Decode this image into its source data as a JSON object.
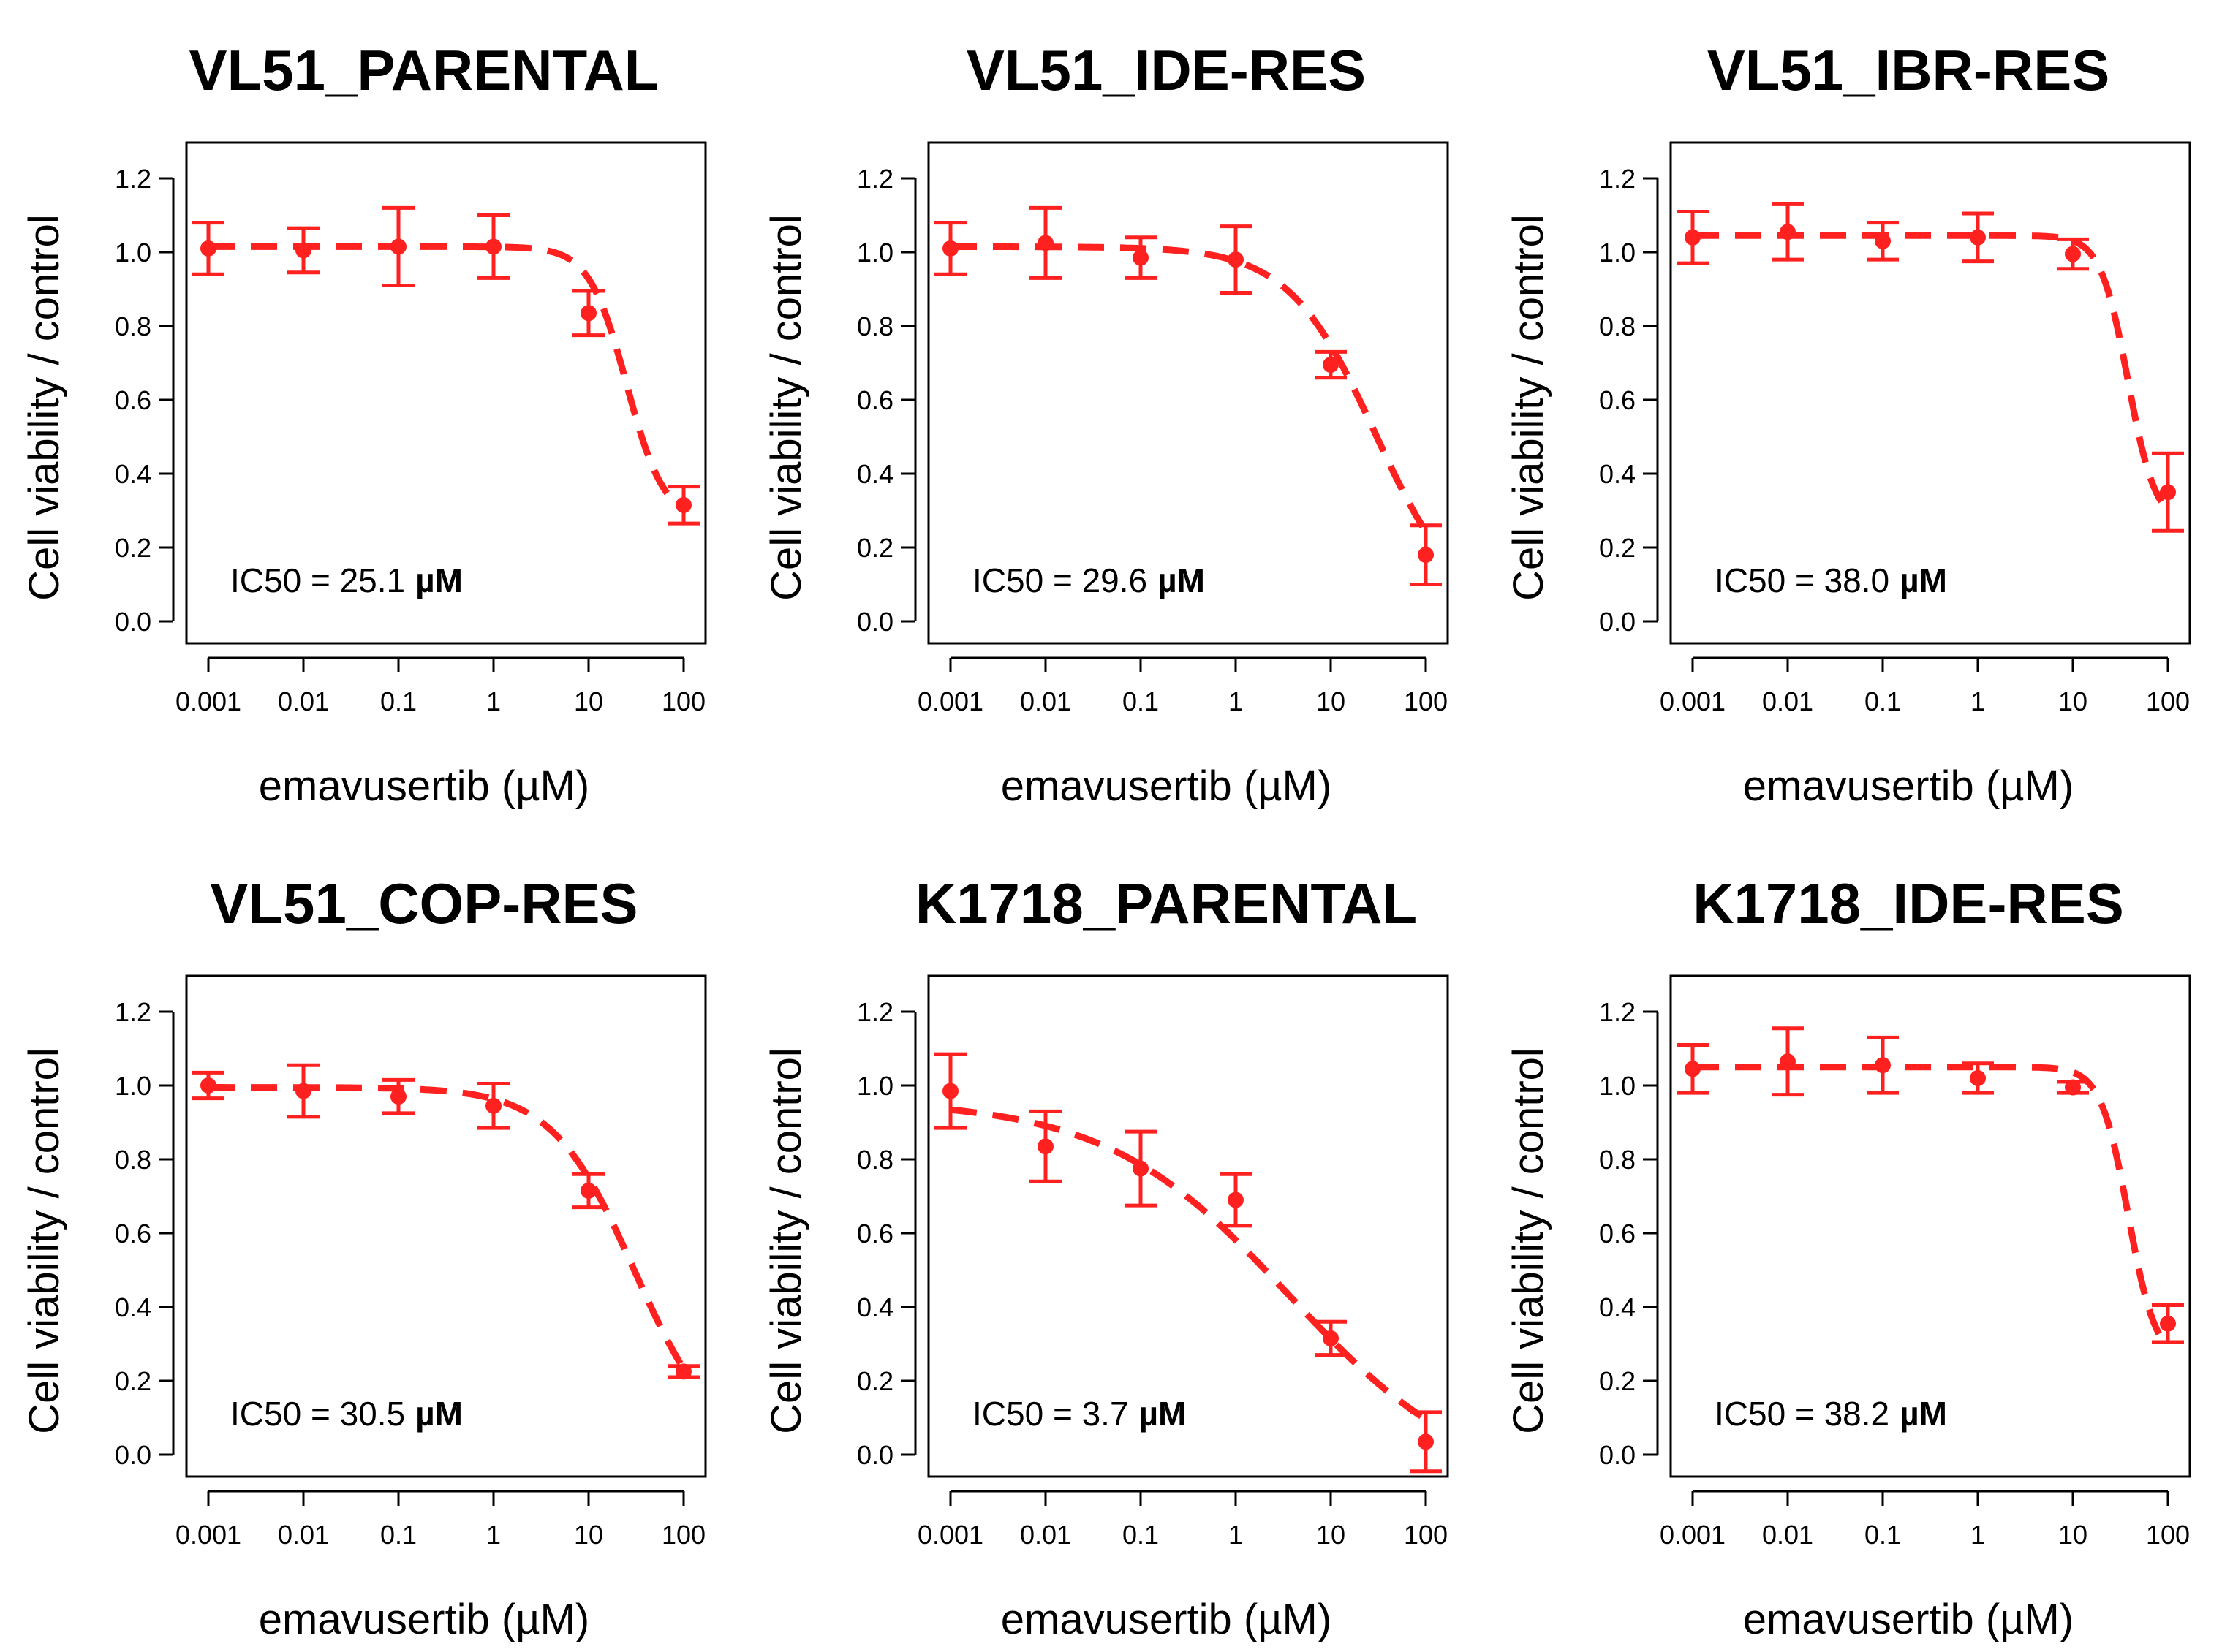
{
  "colors": {
    "series": "#ff2020",
    "axes": "#000000",
    "background": "#ffffff"
  },
  "chart_data": [
    {
      "type": "scatter",
      "title": "VL51_PARENTAL",
      "xlabel": "emavusertib (µM)",
      "ylabel": "Cell viability / control",
      "xscale": "log",
      "xticks": [
        "0.001",
        "0.01",
        "0.1",
        "1",
        "10",
        "100"
      ],
      "yticks": [
        "0.0",
        "0.2",
        "0.4",
        "0.6",
        "0.8",
        "1.0",
        "1.2"
      ],
      "ylim": [
        0,
        1.2
      ],
      "ic50_label": "IC50 = 25.1",
      "ic50_unit": "µM",
      "ic50": 25.1,
      "fit": {
        "top": 1.015,
        "bottom": 0.27,
        "hill": 2.2
      },
      "points": [
        {
          "x": 0.001,
          "y": 1.01,
          "err": 0.07
        },
        {
          "x": 0.01,
          "y": 1.005,
          "err": 0.06
        },
        {
          "x": 0.1,
          "y": 1.015,
          "err": 0.105
        },
        {
          "x": 1,
          "y": 1.015,
          "err": 0.085
        },
        {
          "x": 10,
          "y": 0.835,
          "err": 0.06
        },
        {
          "x": 100,
          "y": 0.315,
          "err": 0.05
        }
      ]
    },
    {
      "type": "scatter",
      "title": "VL51_IDE-RES",
      "xlabel": "emavusertib (µM)",
      "ylabel": "Cell viability / control",
      "xscale": "log",
      "xticks": [
        "0.001",
        "0.01",
        "0.1",
        "1",
        "10",
        "100"
      ],
      "yticks": [
        "0.0",
        "0.2",
        "0.4",
        "0.6",
        "0.8",
        "1.0",
        "1.2"
      ],
      "ylim": [
        0,
        1.2
      ],
      "ic50_label": "IC50 = 29.6",
      "ic50_unit": "µM",
      "ic50": 29.6,
      "fit": {
        "top": 1.015,
        "bottom": 0.0,
        "hill": 0.95
      },
      "points": [
        {
          "x": 0.001,
          "y": 1.01,
          "err": 0.07
        },
        {
          "x": 0.01,
          "y": 1.025,
          "err": 0.095
        },
        {
          "x": 0.1,
          "y": 0.985,
          "err": 0.055
        },
        {
          "x": 1,
          "y": 0.98,
          "err": 0.09
        },
        {
          "x": 10,
          "y": 0.695,
          "err": 0.035
        },
        {
          "x": 100,
          "y": 0.18,
          "err": 0.08
        }
      ]
    },
    {
      "type": "scatter",
      "title": "VL51_IBR-RES",
      "xlabel": "emavusertib (µM)",
      "ylabel": "Cell viability / control",
      "xscale": "log",
      "xticks": [
        "0.001",
        "0.01",
        "0.1",
        "1",
        "10",
        "100"
      ],
      "yticks": [
        "0.0",
        "0.2",
        "0.4",
        "0.6",
        "0.8",
        "1.0",
        "1.2"
      ],
      "ylim": [
        0,
        1.2
      ],
      "ic50_label": "IC50 = 38.0",
      "ic50_unit": "µM",
      "ic50": 38.0,
      "fit": {
        "top": 1.045,
        "bottom": 0.26,
        "hill": 3.0
      },
      "points": [
        {
          "x": 0.001,
          "y": 1.04,
          "err": 0.07
        },
        {
          "x": 0.01,
          "y": 1.055,
          "err": 0.075
        },
        {
          "x": 0.1,
          "y": 1.03,
          "err": 0.05
        },
        {
          "x": 1,
          "y": 1.04,
          "err": 0.065
        },
        {
          "x": 10,
          "y": 0.995,
          "err": 0.04
        },
        {
          "x": 100,
          "y": 0.35,
          "err": 0.105
        }
      ]
    },
    {
      "type": "scatter",
      "title": "VL51_COP-RES",
      "xlabel": "emavusertib (µM)",
      "ylabel": "Cell viability / control",
      "xscale": "log",
      "xticks": [
        "0.001",
        "0.01",
        "0.1",
        "1",
        "10",
        "100"
      ],
      "yticks": [
        "0.0",
        "0.2",
        "0.4",
        "0.6",
        "0.8",
        "1.0",
        "1.2"
      ],
      "ylim": [
        0,
        1.2
      ],
      "ic50_label": "IC50 = 30.5",
      "ic50_unit": "µM",
      "ic50": 30.5,
      "fit": {
        "top": 0.995,
        "bottom": 0.0,
        "hill": 1.0
      },
      "points": [
        {
          "x": 0.001,
          "y": 1.0,
          "err": 0.035
        },
        {
          "x": 0.01,
          "y": 0.985,
          "err": 0.07
        },
        {
          "x": 0.1,
          "y": 0.97,
          "err": 0.045
        },
        {
          "x": 1,
          "y": 0.945,
          "err": 0.06
        },
        {
          "x": 10,
          "y": 0.715,
          "err": 0.045
        },
        {
          "x": 100,
          "y": 0.225,
          "err": 0.015
        }
      ]
    },
    {
      "type": "scatter",
      "title": "K1718_PARENTAL",
      "xlabel": "emavusertib (µM)",
      "ylabel": "Cell viability / control",
      "xscale": "log",
      "xticks": [
        "0.001",
        "0.01",
        "0.1",
        "1",
        "10",
        "100"
      ],
      "yticks": [
        "0.0",
        "0.2",
        "0.4",
        "0.6",
        "0.8",
        "1.0",
        "1.2"
      ],
      "ylim": [
        0,
        1.2
      ],
      "ic50_label": "IC50 = 3.7",
      "ic50_unit": "µM",
      "ic50": 3.7,
      "fit": {
        "top": 0.96,
        "bottom": -0.1,
        "hill": 0.45
      },
      "points": [
        {
          "x": 0.001,
          "y": 0.985,
          "err": 0.1
        },
        {
          "x": 0.01,
          "y": 0.835,
          "err": 0.095
        },
        {
          "x": 0.1,
          "y": 0.775,
          "err": 0.1
        },
        {
          "x": 1,
          "y": 0.69,
          "err": 0.07
        },
        {
          "x": 10,
          "y": 0.315,
          "err": 0.045
        },
        {
          "x": 100,
          "y": 0.035,
          "err": 0.08
        }
      ]
    },
    {
      "type": "scatter",
      "title": "K1718_IDE-RES",
      "xlabel": "emavusertib (µM)",
      "ylabel": "Cell viability / control",
      "xscale": "log",
      "xticks": [
        "0.001",
        "0.01",
        "0.1",
        "1",
        "10",
        "100"
      ],
      "yticks": [
        "0.0",
        "0.2",
        "0.4",
        "0.6",
        "0.8",
        "1.0",
        "1.2"
      ],
      "ylim": [
        0,
        1.2
      ],
      "ic50_label": "IC50 = 38.2",
      "ic50_unit": "µM",
      "ic50": 38.2,
      "fit": {
        "top": 1.05,
        "bottom": 0.25,
        "hill": 3.0
      },
      "points": [
        {
          "x": 0.001,
          "y": 1.045,
          "err": 0.065
        },
        {
          "x": 0.01,
          "y": 1.065,
          "err": 0.09
        },
        {
          "x": 0.1,
          "y": 1.055,
          "err": 0.075
        },
        {
          "x": 1,
          "y": 1.02,
          "err": 0.04
        },
        {
          "x": 10,
          "y": 0.995,
          "err": 0.015
        },
        {
          "x": 100,
          "y": 0.355,
          "err": 0.05
        }
      ]
    }
  ]
}
